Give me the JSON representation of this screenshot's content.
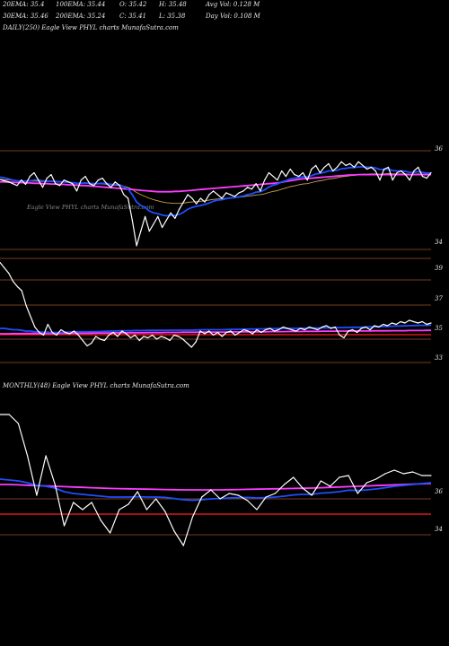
{
  "header": {
    "row1": [
      "20EMA: 35.4",
      "100EMA: 35.44",
      "O: 35.42",
      "H: 35.48",
      "Avg Vol: 0.128  M"
    ],
    "row2": [
      "30EMA: 35.46",
      "200EMA: 35.24",
      "C: 35.41",
      "L: 35.38",
      "Day Vol: 0.108  M"
    ]
  },
  "labels": {
    "daily": "DAILY(250) Eagle  View  PHYL  charts MunafaSutra.com",
    "daily_watermark": "Eagle  View  PHYL  charts MunafaSutra.com",
    "monthly": "MONTHLY(48) Eagle  View  PHYL  charts MunafaSutra.com"
  },
  "colors": {
    "background": "#000000",
    "price": "#ffffff",
    "ema_fast": "#1f4fff",
    "ema_slow": "#ff3cff",
    "ema_mid": "#c8a050",
    "ref_line": "#a0522d",
    "ref_line_red": "#ff2020"
  },
  "chart_data": [
    {
      "type": "line",
      "name": "daily",
      "ticks": [
        "36",
        "34"
      ],
      "tick_values": [
        36,
        34
      ],
      "ylim": [
        33.6,
        36.6
      ],
      "price": [
        35.62,
        35.58,
        35.55,
        35.5,
        35.45,
        35.6,
        35.48,
        35.7,
        35.8,
        35.6,
        35.4,
        35.65,
        35.75,
        35.5,
        35.45,
        35.6,
        35.55,
        35.5,
        35.3,
        35.6,
        35.7,
        35.5,
        35.45,
        35.6,
        35.65,
        35.5,
        35.4,
        35.55,
        35.45,
        35.2,
        35.1,
        34.5,
        33.8,
        34.2,
        34.6,
        34.2,
        34.4,
        34.6,
        34.3,
        34.5,
        34.7,
        34.55,
        34.8,
        35.0,
        35.2,
        35.1,
        34.95,
        35.1,
        35.0,
        35.2,
        35.3,
        35.2,
        35.1,
        35.25,
        35.2,
        35.15,
        35.25,
        35.3,
        35.4,
        35.35,
        35.5,
        35.3,
        35.6,
        35.8,
        35.7,
        35.6,
        35.85,
        35.7,
        35.9,
        35.75,
        35.7,
        35.8,
        35.6,
        35.9,
        36.0,
        35.8,
        35.95,
        36.05,
        35.85,
        35.95,
        36.1,
        36.0,
        36.05,
        35.95,
        36.1,
        36.0,
        35.9,
        35.95,
        35.85,
        35.6,
        35.9,
        35.95,
        35.6,
        35.8,
        35.85,
        35.75,
        35.6,
        35.85,
        35.95,
        35.7,
        35.65,
        35.8
      ],
      "ema_fast": [
        35.68,
        35.66,
        35.63,
        35.6,
        35.58,
        35.57,
        35.57,
        35.58,
        35.6,
        35.6,
        35.58,
        35.57,
        35.57,
        35.56,
        35.55,
        35.55,
        35.54,
        35.53,
        35.51,
        35.51,
        35.52,
        35.51,
        35.5,
        35.5,
        35.51,
        35.5,
        35.48,
        35.48,
        35.47,
        35.42,
        35.35,
        35.2,
        35.0,
        34.9,
        34.85,
        34.75,
        34.7,
        34.68,
        34.64,
        34.62,
        34.63,
        34.63,
        34.66,
        34.72,
        34.8,
        34.85,
        34.88,
        34.9,
        34.93,
        34.97,
        35.02,
        35.05,
        35.06,
        35.09,
        35.11,
        35.12,
        35.14,
        35.16,
        35.2,
        35.22,
        35.27,
        35.28,
        35.33,
        35.41,
        35.46,
        35.49,
        35.55,
        35.58,
        35.63,
        35.65,
        35.67,
        35.69,
        35.68,
        35.72,
        35.77,
        35.78,
        35.81,
        35.85,
        35.85,
        35.87,
        35.91,
        35.92,
        35.94,
        35.94,
        35.96,
        35.96,
        35.95,
        35.95,
        35.93,
        35.89,
        35.89,
        35.9,
        35.86,
        35.85,
        35.85,
        35.84,
        35.81,
        35.81,
        35.83,
        35.81,
        35.79,
        35.79
      ],
      "ema_slow": [
        35.55,
        35.55,
        35.54,
        35.54,
        35.53,
        35.53,
        35.52,
        35.52,
        35.51,
        35.51,
        35.5,
        35.5,
        35.49,
        35.49,
        35.48,
        35.48,
        35.47,
        35.47,
        35.46,
        35.45,
        35.45,
        35.44,
        35.43,
        35.42,
        35.41,
        35.4,
        35.39,
        35.38,
        35.37,
        35.36,
        35.35,
        35.34,
        35.33,
        35.32,
        35.31,
        35.3,
        35.29,
        35.28,
        35.28,
        35.28,
        35.28,
        35.29,
        35.29,
        35.3,
        35.31,
        35.32,
        35.33,
        35.34,
        35.35,
        35.36,
        35.37,
        35.38,
        35.39,
        35.4,
        35.41,
        35.42,
        35.43,
        35.44,
        35.45,
        35.46,
        35.47,
        35.48,
        35.49,
        35.5,
        35.51,
        35.52,
        35.54,
        35.56,
        35.58,
        35.6,
        35.62,
        35.63,
        35.64,
        35.65,
        35.66,
        35.67,
        35.68,
        35.69,
        35.7,
        35.71,
        35.72,
        35.73,
        35.74,
        35.74,
        35.75,
        35.75,
        35.75,
        35.75,
        35.75,
        35.75,
        35.75,
        35.75,
        35.75,
        35.75,
        35.75,
        35.75,
        35.75,
        35.75,
        35.75,
        35.75,
        35.75,
        35.75
      ],
      "ema_mid": [
        35.62,
        35.61,
        35.6,
        35.59,
        35.58,
        35.58,
        35.57,
        35.57,
        35.57,
        35.57,
        35.56,
        35.56,
        35.56,
        35.55,
        35.54,
        35.54,
        35.53,
        35.52,
        35.51,
        35.51,
        35.51,
        35.5,
        35.49,
        35.49,
        35.49,
        35.48,
        35.47,
        35.46,
        35.45,
        35.43,
        35.4,
        35.34,
        35.26,
        35.2,
        35.15,
        35.1,
        35.06,
        35.03,
        35.0,
        34.98,
        34.97,
        34.96,
        34.96,
        34.97,
        34.99,
        35.0,
        35.01,
        35.02,
        35.03,
        35.05,
        35.07,
        35.08,
        35.09,
        35.1,
        35.11,
        35.12,
        35.13,
        35.14,
        35.16,
        35.17,
        35.19,
        35.2,
        35.22,
        35.26,
        35.29,
        35.31,
        35.35,
        35.38,
        35.42,
        35.44,
        35.47,
        35.49,
        35.5,
        35.53,
        35.56,
        35.58,
        35.6,
        35.63,
        35.64,
        35.66,
        35.69,
        35.7,
        35.72,
        35.73,
        35.75,
        35.76,
        35.76,
        35.77,
        35.77,
        35.76,
        35.77,
        35.78,
        35.77,
        35.77,
        35.77,
        35.77,
        35.76,
        35.76,
        35.77,
        35.76,
        35.76,
        35.76
      ]
    },
    {
      "type": "line",
      "name": "daily-secondary",
      "ticks": [
        "39",
        "37",
        "35",
        "33"
      ],
      "tick_values": [
        39,
        37,
        35,
        33
      ],
      "ylim": [
        32.5,
        40.5
      ],
      "price": [
        40.0,
        39.6,
        39.2,
        38.6,
        38.2,
        37.9,
        36.8,
        36.0,
        35.2,
        34.8,
        34.6,
        35.4,
        34.8,
        34.6,
        35.0,
        34.8,
        34.7,
        34.9,
        34.6,
        34.2,
        33.8,
        34.0,
        34.5,
        34.3,
        34.2,
        34.6,
        34.8,
        34.5,
        34.9,
        34.7,
        34.4,
        34.6,
        34.2,
        34.5,
        34.4,
        34.6,
        34.3,
        34.5,
        34.4,
        34.2,
        34.6,
        34.5,
        34.3,
        34.0,
        33.7,
        34.1,
        34.9,
        34.7,
        34.9,
        34.6,
        34.8,
        34.5,
        34.8,
        34.9,
        34.6,
        34.8,
        35.0,
        34.9,
        34.7,
        35.0,
        34.8,
        35.0,
        35.1,
        34.9,
        35.0,
        35.2,
        35.1,
        35.0,
        34.9,
        35.1,
        35.0,
        35.2,
        35.1,
        35.0,
        35.2,
        35.3,
        35.1,
        35.2,
        34.6,
        34.4,
        34.9,
        35.0,
        34.8,
        35.1,
        35.2,
        35.0,
        35.3,
        35.2,
        35.4,
        35.3,
        35.5,
        35.4,
        35.6,
        35.5,
        35.7,
        35.6,
        35.5,
        35.6,
        35.4,
        35.5
      ],
      "ema_fast": [
        35.1,
        35.1,
        35.05,
        35.0,
        35.0,
        34.95,
        34.9,
        34.9,
        34.85,
        34.85,
        34.8,
        34.82,
        34.8,
        34.8,
        34.8,
        34.82,
        34.83,
        34.85,
        34.85,
        34.85,
        34.85,
        34.86,
        34.86,
        34.87,
        34.88,
        34.9,
        34.9,
        34.91,
        34.92,
        34.93,
        34.93,
        34.94,
        34.94,
        34.94,
        34.95,
        34.95,
        34.95,
        34.96,
        34.96,
        34.96,
        34.97,
        34.97,
        34.97,
        34.97,
        34.97,
        34.98,
        34.99,
        35.0,
        35.0,
        35.0,
        35.0,
        35.0,
        35.01,
        35.02,
        35.02,
        35.03,
        35.04,
        35.05,
        35.05,
        35.06,
        35.06,
        35.07,
        35.08,
        35.08,
        35.09,
        35.1,
        35.1,
        35.1,
        35.1,
        35.11,
        35.11,
        35.12,
        35.12,
        35.13,
        35.14,
        35.15,
        35.15,
        35.16,
        35.16,
        35.16,
        35.17,
        35.18,
        35.18,
        35.19,
        35.2,
        35.21,
        35.22,
        35.23,
        35.24,
        35.25,
        35.26,
        35.27,
        35.28,
        35.29,
        35.3,
        35.31,
        35.32,
        35.33,
        35.33,
        35.34
      ],
      "ema_slow": [
        34.7,
        34.7,
        34.7,
        34.71,
        34.71,
        34.71,
        34.72,
        34.72,
        34.72,
        34.72,
        34.73,
        34.73,
        34.73,
        34.73,
        34.74,
        34.74,
        34.74,
        34.74,
        34.75,
        34.75,
        34.75,
        34.75,
        34.76,
        34.76,
        34.76,
        34.76,
        34.77,
        34.77,
        34.77,
        34.77,
        34.78,
        34.78,
        34.78,
        34.78,
        34.79,
        34.79,
        34.79,
        34.79,
        34.8,
        34.8,
        34.8,
        34.8,
        34.81,
        34.81,
        34.81,
        34.81,
        34.82,
        34.82,
        34.82,
        34.82,
        34.83,
        34.83,
        34.83,
        34.83,
        34.84,
        34.84,
        34.84,
        34.84,
        34.85,
        34.85,
        34.85,
        34.85,
        34.86,
        34.86,
        34.86,
        34.86,
        34.87,
        34.87,
        34.87,
        34.87,
        34.88,
        34.88,
        34.88,
        34.88,
        34.89,
        34.89,
        34.89,
        34.89,
        34.9,
        34.9,
        34.9,
        34.9,
        34.91,
        34.91,
        34.91,
        34.91,
        34.92,
        34.92,
        34.92,
        34.92,
        34.93,
        34.93,
        34.93,
        34.93,
        34.94,
        34.94,
        34.94,
        34.94,
        34.95,
        34.95
      ]
    },
    {
      "type": "line",
      "name": "monthly",
      "ticks": [
        "36",
        "34"
      ],
      "tick_values": [
        36,
        34
      ],
      "ylim": [
        31.5,
        39.5
      ],
      "price": [
        38.9,
        38.9,
        38.4,
        36.6,
        34.4,
        36.6,
        35.0,
        32.7,
        34.0,
        33.6,
        34.0,
        33.0,
        32.3,
        33.6,
        33.9,
        34.6,
        33.6,
        34.2,
        33.5,
        32.4,
        31.6,
        33.2,
        34.3,
        34.7,
        34.2,
        34.5,
        34.4,
        34.1,
        33.6,
        34.3,
        34.5,
        35.0,
        35.4,
        34.8,
        34.4,
        35.2,
        34.9,
        35.4,
        35.5,
        34.5,
        35.1,
        35.3,
        35.6,
        35.8,
        35.6,
        35.7,
        35.5,
        35.5
      ],
      "ema_fast": [
        35.3,
        35.25,
        35.2,
        35.1,
        34.95,
        34.9,
        34.8,
        34.6,
        34.5,
        34.45,
        34.4,
        34.35,
        34.3,
        34.3,
        34.3,
        34.32,
        34.3,
        34.3,
        34.28,
        34.22,
        34.15,
        34.12,
        34.15,
        34.2,
        34.22,
        34.25,
        34.27,
        34.28,
        34.25,
        34.27,
        34.3,
        34.35,
        34.42,
        34.45,
        34.45,
        34.52,
        34.55,
        34.6,
        34.68,
        34.67,
        34.7,
        34.75,
        34.82,
        34.9,
        34.95,
        35.0,
        35.05,
        35.1
      ],
      "ema_slow": [
        35.0,
        35.0,
        34.98,
        34.96,
        34.94,
        34.92,
        34.9,
        34.88,
        34.86,
        34.84,
        34.82,
        34.8,
        34.78,
        34.77,
        34.76,
        34.75,
        34.74,
        34.73,
        34.72,
        34.71,
        34.7,
        34.7,
        34.7,
        34.7,
        34.7,
        34.71,
        34.72,
        34.73,
        34.74,
        34.75,
        34.76,
        34.77,
        34.78,
        34.79,
        34.8,
        34.82,
        34.84,
        34.86,
        34.88,
        34.9,
        34.92,
        34.94,
        34.96,
        34.98,
        35.0,
        35.02,
        35.04,
        35.06
      ]
    }
  ]
}
